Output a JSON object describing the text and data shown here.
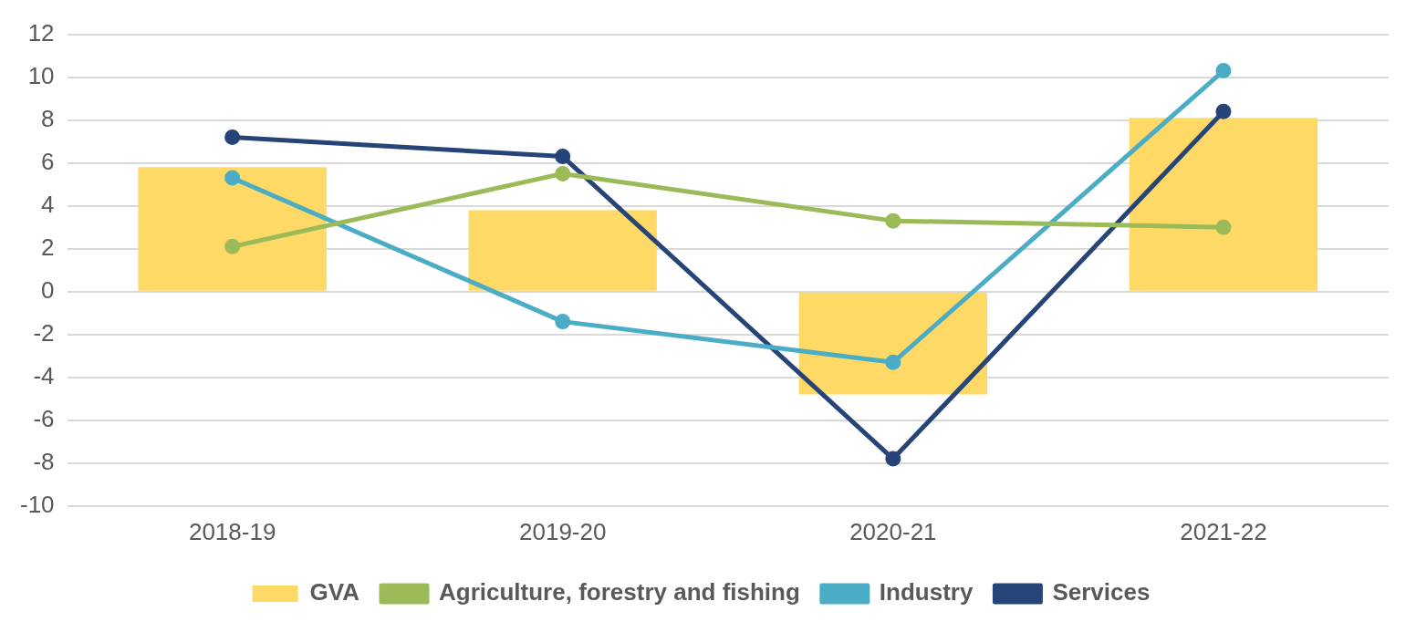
{
  "chart_data": {
    "type": "bar",
    "categories": [
      "2018-19",
      "2019-20",
      "2020-21",
      "2021-22"
    ],
    "series": [
      {
        "name": "GVA",
        "color": "#ffd966",
        "values": [
          5.8,
          3.8,
          -4.8,
          8.1
        ]
      },
      {
        "name": "Agriculture, forestry and fishing",
        "type": "line",
        "color": "#9bbb59",
        "values": [
          2.1,
          5.5,
          3.3,
          3.0
        ]
      },
      {
        "name": "Industry",
        "type": "line",
        "color": "#4bacc6",
        "values": [
          5.3,
          -1.4,
          -3.3,
          10.3
        ]
      },
      {
        "name": "Services",
        "type": "line",
        "color": "#264478",
        "values": [
          7.2,
          6.3,
          -7.8,
          8.4
        ]
      }
    ],
    "ylim": [
      -10,
      12
    ],
    "yticks": [
      -10,
      -8,
      -6,
      -4,
      -2,
      0,
      2,
      4,
      6,
      8,
      10,
      12
    ],
    "grid": "y",
    "legend": "bottom",
    "marker": "circle",
    "line_style": "solid"
  }
}
